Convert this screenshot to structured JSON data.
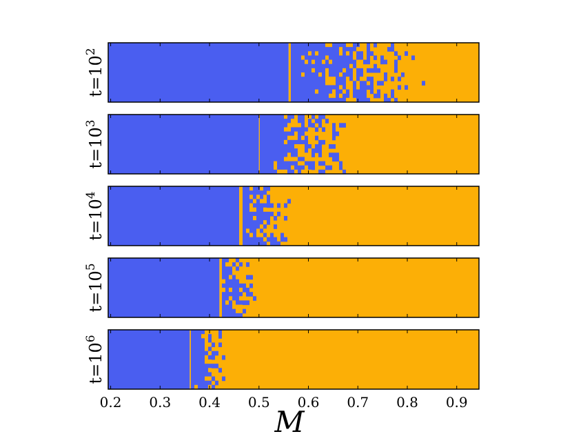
{
  "chart_data": {
    "type": "heatmap",
    "xlabel": "M",
    "xlim": [
      0.195,
      0.945
    ],
    "xticks": [
      0.2,
      0.3,
      0.4,
      0.5,
      0.6,
      0.7,
      0.8,
      0.9
    ],
    "xtick_labels": [
      "0.2",
      "0.3",
      "0.4",
      "0.5",
      "0.6",
      "0.7",
      "0.8",
      "0.9"
    ],
    "grid": false,
    "colors": {
      "state_0": "#4a5ef0",
      "state_1": "#fcaf06"
    },
    "panels": [
      {
        "label": {
          "base": "t=10",
          "exp": "2"
        },
        "transition_start": 0.56,
        "transition_end": 0.85
      },
      {
        "label": {
          "base": "t=10",
          "exp": "3"
        },
        "transition_start": 0.5,
        "transition_end": 0.7
      },
      {
        "label": {
          "base": "t=10",
          "exp": "4"
        },
        "transition_start": 0.46,
        "transition_end": 0.57
      },
      {
        "label": {
          "base": "t=10",
          "exp": "5"
        },
        "transition_start": 0.42,
        "transition_end": 0.5
      },
      {
        "label": {
          "base": "t=10",
          "exp": "6"
        },
        "transition_start": 0.36,
        "transition_end": 0.44
      }
    ]
  }
}
